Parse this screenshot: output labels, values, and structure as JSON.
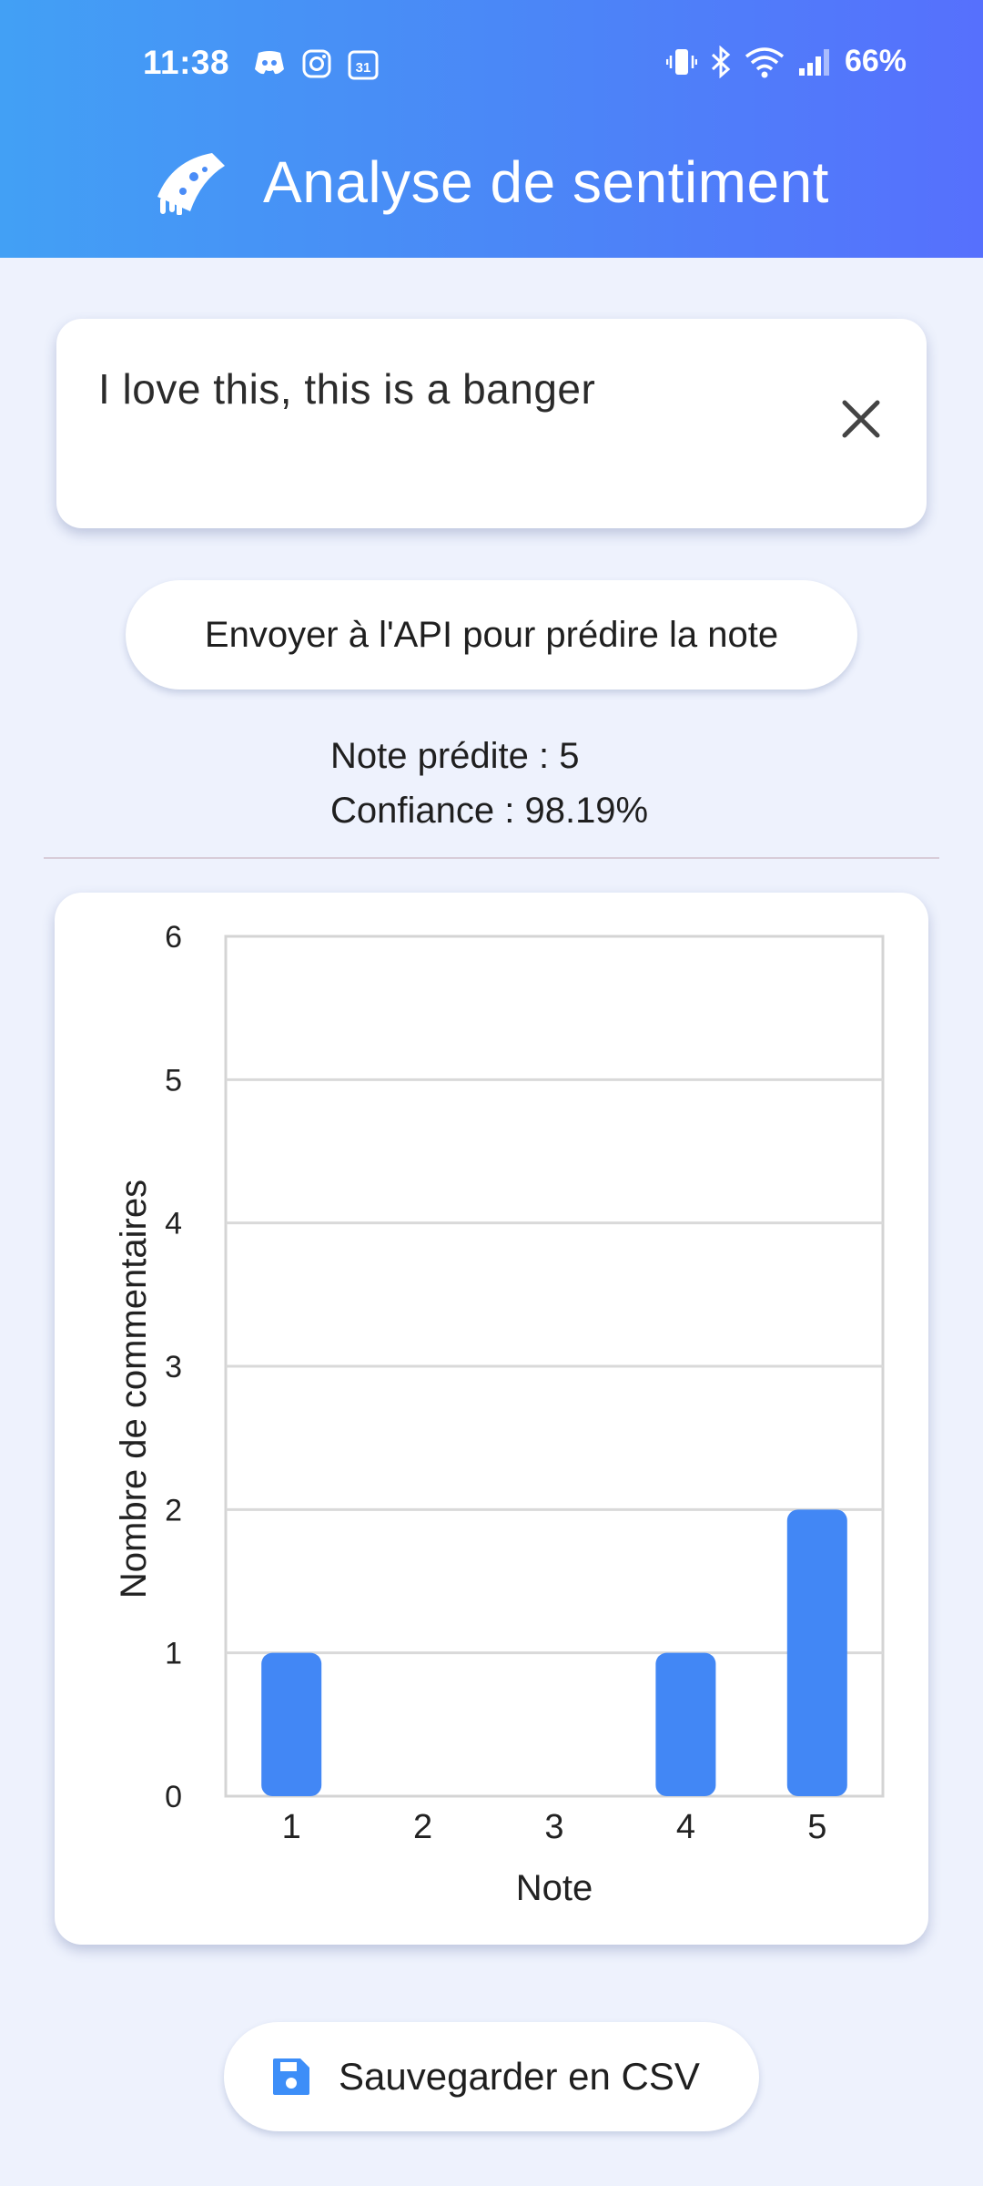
{
  "status_bar": {
    "time": "11:38",
    "battery": "66%",
    "notification_icons": [
      "discord-icon",
      "instagram-icon",
      "calendar-icon"
    ],
    "calendar_day": "31",
    "system_icons": [
      "vibrate-icon",
      "bluetooth-icon",
      "wifi-icon",
      "signal-icon"
    ]
  },
  "app_bar": {
    "title": "Analyse de sentiment",
    "icon": "pizza-icon",
    "gradient": [
      "#42a0f5",
      "#5670fd"
    ]
  },
  "comment_input": {
    "value": "I love this, this is a banger",
    "clear_icon": "close-icon"
  },
  "predict_button": {
    "label": "Envoyer à l'API pour prédire la note"
  },
  "prediction": {
    "note_line": "Note prédite : 5",
    "confidence_line": "Confiance : 98.19%"
  },
  "chart_data": {
    "type": "bar",
    "categories": [
      "1",
      "2",
      "3",
      "4",
      "5"
    ],
    "values": [
      1,
      0,
      0,
      1,
      2
    ],
    "xlabel": "Note",
    "ylabel": "Nombre de commentaires",
    "ylim": [
      0,
      6
    ],
    "yticks": [
      "0",
      "1",
      "2",
      "3",
      "4",
      "5",
      "6"
    ],
    "grid": true,
    "bar_color": "#4287f5"
  },
  "save_button": {
    "label": "Sauvegarder en CSV",
    "icon": "floppy-disk-icon",
    "icon_color": "#3d8ef8"
  }
}
